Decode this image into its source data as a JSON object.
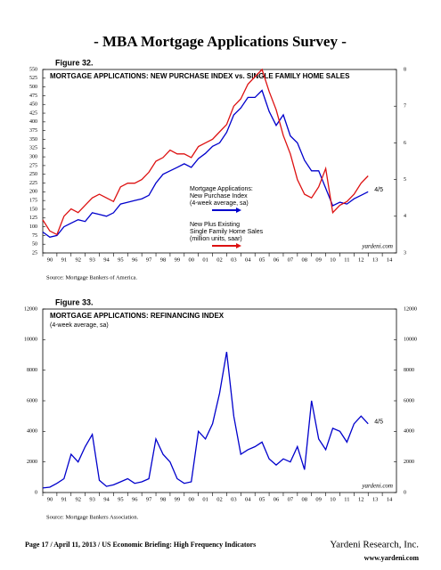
{
  "page_title": "- MBA Mortgage Applications Survey -",
  "chart_data": [
    {
      "type": "line",
      "figure_label": "Figure 32.",
      "title": "MORTGAGE APPLICATIONS: NEW PURCHASE INDEX vs. SINGLE FAMILY HOME SALES",
      "xlim": [
        1990,
        2015
      ],
      "xticks": [
        {
          "value": 1990,
          "label": "90"
        },
        {
          "value": 1991,
          "label": "91"
        },
        {
          "value": 1992,
          "label": "92"
        },
        {
          "value": 1993,
          "label": "93"
        },
        {
          "value": 1994,
          "label": "94"
        },
        {
          "value": 1995,
          "label": "95"
        },
        {
          "value": 1996,
          "label": "96"
        },
        {
          "value": 1997,
          "label": "97"
        },
        {
          "value": 1998,
          "label": "98"
        },
        {
          "value": 1999,
          "label": "99"
        },
        {
          "value": 2000,
          "label": "00"
        },
        {
          "value": 2001,
          "label": "01"
        },
        {
          "value": 2002,
          "label": "02"
        },
        {
          "value": 2003,
          "label": "03"
        },
        {
          "value": 2004,
          "label": "04"
        },
        {
          "value": 2005,
          "label": "05"
        },
        {
          "value": 2006,
          "label": "06"
        },
        {
          "value": 2007,
          "label": "07"
        },
        {
          "value": 2008,
          "label": "08"
        },
        {
          "value": 2009,
          "label": "09"
        },
        {
          "value": 2010,
          "label": "10"
        },
        {
          "value": 2011,
          "label": "11"
        },
        {
          "value": 2012,
          "label": "12"
        },
        {
          "value": 2013,
          "label": "13"
        },
        {
          "value": 2014,
          "label": "14"
        }
      ],
      "ylim": [
        25,
        550
      ],
      "yticks": [
        25,
        50,
        75,
        100,
        125,
        150,
        175,
        200,
        225,
        250,
        275,
        300,
        325,
        350,
        375,
        400,
        425,
        450,
        475,
        500,
        525,
        550
      ],
      "y2lim": [
        3,
        8
      ],
      "y2ticks": [
        3,
        4,
        5,
        6,
        7,
        8
      ],
      "x": [
        1990,
        1990.5,
        1991,
        1991.5,
        1992,
        1992.5,
        1993,
        1993.5,
        1994,
        1994.5,
        1995,
        1995.5,
        1996,
        1996.5,
        1997,
        1997.5,
        1998,
        1998.5,
        1999,
        1999.5,
        2000,
        2000.5,
        2001,
        2001.5,
        2002,
        2002.5,
        2003,
        2003.5,
        2004,
        2004.5,
        2005,
        2005.5,
        2006,
        2006.5,
        2007,
        2007.5,
        2008,
        2008.5,
        2009,
        2009.5,
        2010,
        2010.5,
        2011,
        2011.5,
        2012,
        2012.5,
        2013
      ],
      "series": [
        {
          "name": [
            "Mortgage Applications:",
            "New Purchase Index",
            "(4-week average, sa)"
          ],
          "color": "#0000cc",
          "axis": "y",
          "values": [
            85,
            70,
            75,
            100,
            110,
            120,
            115,
            140,
            135,
            130,
            140,
            165,
            170,
            175,
            180,
            190,
            225,
            250,
            260,
            270,
            280,
            270,
            295,
            310,
            330,
            340,
            370,
            420,
            440,
            470,
            470,
            490,
            430,
            390,
            420,
            360,
            340,
            290,
            260,
            260,
            210,
            160,
            170,
            165,
            180,
            190,
            200
          ]
        },
        {
          "name": [
            "New Plus Existing",
            "Single Family Home Sales",
            "(million units, saar)"
          ],
          "color": "#dd1111",
          "axis": "y2",
          "values": [
            3.9,
            3.6,
            3.5,
            4.0,
            4.2,
            4.1,
            4.3,
            4.5,
            4.6,
            4.5,
            4.4,
            4.8,
            4.9,
            4.9,
            5.0,
            5.2,
            5.5,
            5.6,
            5.8,
            5.7,
            5.7,
            5.6,
            5.9,
            6.0,
            6.1,
            6.3,
            6.5,
            7.0,
            7.2,
            7.6,
            7.8,
            8.0,
            7.4,
            6.9,
            6.2,
            5.7,
            5.0,
            4.6,
            4.5,
            4.8,
            5.3,
            4.1,
            4.3,
            4.4,
            4.6,
            4.9,
            5.1
          ]
        }
      ],
      "date_note": "4/5",
      "watermark": "yardeni.com",
      "source": "Source: Mortgage Bankers of America."
    },
    {
      "type": "line",
      "figure_label": "Figure 33.",
      "title": "MORTGAGE APPLICATIONS: REFINANCING INDEX",
      "subtitle": "(4-week average, sa)",
      "xlim": [
        1990,
        2015
      ],
      "xticks": [
        {
          "value": 1990,
          "label": "90"
        },
        {
          "value": 1991,
          "label": "91"
        },
        {
          "value": 1992,
          "label": "92"
        },
        {
          "value": 1993,
          "label": "93"
        },
        {
          "value": 1994,
          "label": "94"
        },
        {
          "value": 1995,
          "label": "95"
        },
        {
          "value": 1996,
          "label": "96"
        },
        {
          "value": 1997,
          "label": "97"
        },
        {
          "value": 1998,
          "label": "98"
        },
        {
          "value": 1999,
          "label": "99"
        },
        {
          "value": 2000,
          "label": "00"
        },
        {
          "value": 2001,
          "label": "01"
        },
        {
          "value": 2002,
          "label": "02"
        },
        {
          "value": 2003,
          "label": "03"
        },
        {
          "value": 2004,
          "label": "04"
        },
        {
          "value": 2005,
          "label": "05"
        },
        {
          "value": 2006,
          "label": "06"
        },
        {
          "value": 2007,
          "label": "07"
        },
        {
          "value": 2008,
          "label": "08"
        },
        {
          "value": 2009,
          "label": "09"
        },
        {
          "value": 2010,
          "label": "10"
        },
        {
          "value": 2011,
          "label": "11"
        },
        {
          "value": 2012,
          "label": "12"
        },
        {
          "value": 2013,
          "label": "13"
        },
        {
          "value": 2014,
          "label": "14"
        }
      ],
      "ylim": [
        0,
        12000
      ],
      "yticks": [
        0,
        2000,
        4000,
        6000,
        8000,
        10000,
        12000
      ],
      "y2lim": [
        0,
        12000
      ],
      "y2ticks": [
        0,
        2000,
        4000,
        6000,
        8000,
        10000,
        12000
      ],
      "x": [
        1990,
        1990.5,
        1991,
        1991.5,
        1992,
        1992.5,
        1993,
        1993.5,
        1994,
        1994.5,
        1995,
        1995.5,
        1996,
        1996.5,
        1997,
        1997.5,
        1998,
        1998.5,
        1999,
        1999.5,
        2000,
        2000.5,
        2001,
        2001.5,
        2002,
        2002.5,
        2003,
        2003.5,
        2004,
        2004.5,
        2005,
        2005.5,
        2006,
        2006.5,
        2007,
        2007.5,
        2008,
        2008.5,
        2009,
        2009.5,
        2010,
        2010.5,
        2011,
        2011.5,
        2012,
        2012.5,
        2013
      ],
      "series": [
        {
          "color": "#0000cc",
          "axis": "y",
          "values": [
            300,
            350,
            600,
            900,
            2500,
            2000,
            3000,
            3800,
            800,
            400,
            500,
            700,
            900,
            600,
            700,
            900,
            3500,
            2500,
            2000,
            900,
            600,
            700,
            4000,
            3500,
            4500,
            6500,
            9200,
            5000,
            2500,
            2800,
            3000,
            3300,
            2200,
            1800,
            2200,
            2000,
            3000,
            1500,
            6000,
            3500,
            2800,
            4200,
            4000,
            3300,
            4500,
            5000,
            4500
          ]
        }
      ],
      "date_note": "4/5",
      "watermark": "yardeni.com",
      "source": "Source: Mortgage Bankers Association."
    }
  ],
  "footer": {
    "left": "Page 17 / April 11, 2013 / US Economic Briefing: High Frequency Indicators",
    "company": "Yardeni Research, Inc.",
    "url": "www.yardeni.com"
  }
}
